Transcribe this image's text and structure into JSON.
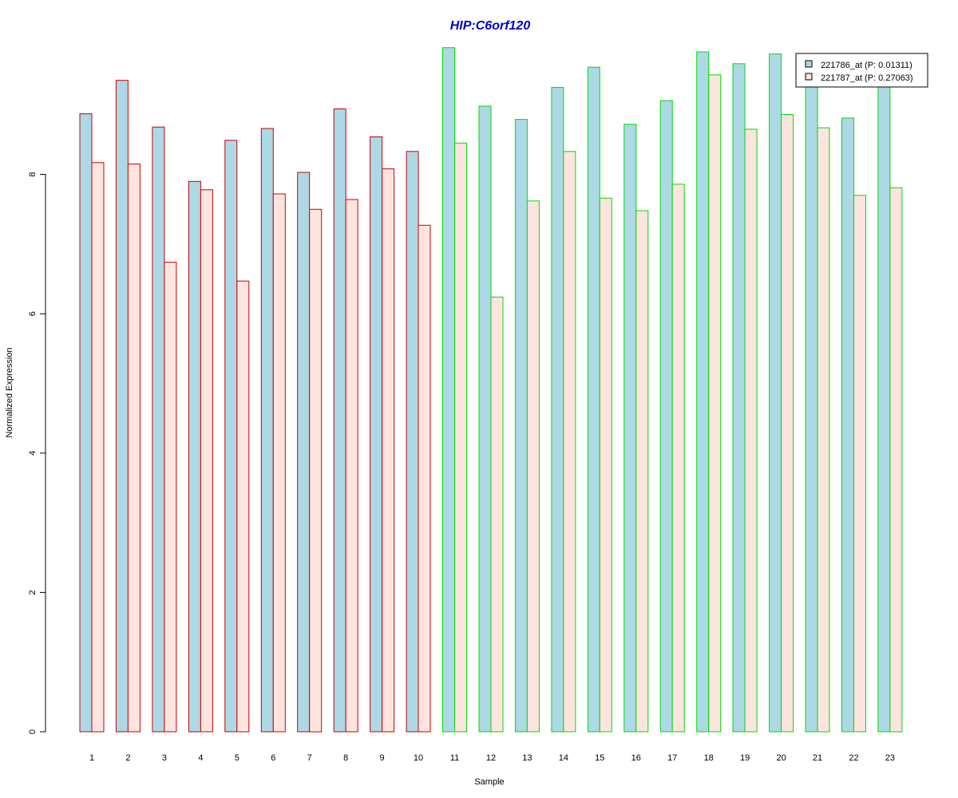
{
  "chart_data": {
    "type": "bar",
    "title": "HIP:C6orf120",
    "xlabel": "Sample",
    "ylabel": "Normalized Expression",
    "categories": [
      "1",
      "2",
      "3",
      "4",
      "5",
      "6",
      "7",
      "8",
      "9",
      "10",
      "11",
      "12",
      "13",
      "14",
      "15",
      "16",
      "17",
      "18",
      "19",
      "20",
      "21",
      "22",
      "23"
    ],
    "yticks": [
      "0",
      "2",
      "4",
      "6",
      "8"
    ],
    "ylim": [
      0,
      10.2
    ],
    "grid": false,
    "legend_position": "top-right",
    "series": [
      {
        "name": "221786_at (P: 0.01311)",
        "fill": "#add8e6",
        "values": [
          8.87,
          9.35,
          8.68,
          7.9,
          8.49,
          8.66,
          8.03,
          8.94,
          8.54,
          8.33,
          9.82,
          8.98,
          8.79,
          9.25,
          9.54,
          8.72,
          9.06,
          9.76,
          9.59,
          9.73,
          9.28,
          8.81,
          9.34
        ]
      },
      {
        "name": "221787_at (P: 0.27063)",
        "fill": "#fde4df",
        "values": [
          8.17,
          8.15,
          6.74,
          7.78,
          6.47,
          7.72,
          7.5,
          7.64,
          8.08,
          7.27,
          8.45,
          6.24,
          7.62,
          8.33,
          7.66,
          7.48,
          7.86,
          9.43,
          8.65,
          8.86,
          8.67,
          7.7,
          7.81
        ]
      }
    ],
    "group_border_colors": [
      "#cc0000",
      "#cc0000",
      "#cc0000",
      "#cc0000",
      "#cc0000",
      "#cc0000",
      "#cc0000",
      "#cc0000",
      "#cc0000",
      "#cc0000",
      "#00dd00",
      "#00dd00",
      "#00dd00",
      "#00dd00",
      "#00dd00",
      "#00dd00",
      "#00dd00",
      "#00dd00",
      "#00dd00",
      "#00dd00",
      "#00dd00",
      "#00dd00",
      "#00dd00"
    ]
  }
}
